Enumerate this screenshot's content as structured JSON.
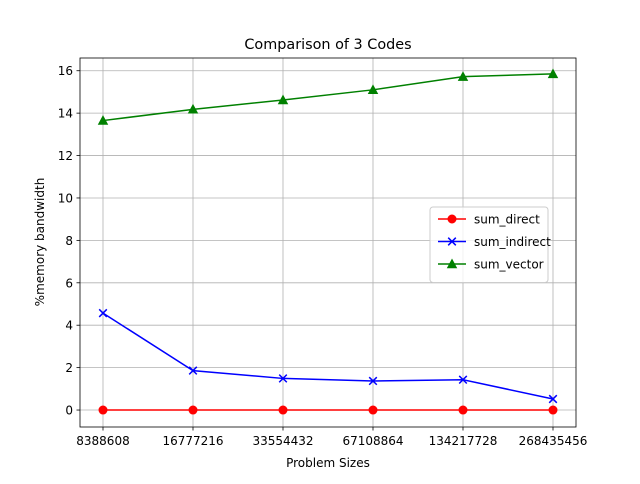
{
  "chart_data": {
    "type": "line",
    "title": "Comparison of 3 Codes",
    "xlabel": "Problem Sizes",
    "ylabel": "%memory bandwidth",
    "categories": [
      "8388608",
      "16777216",
      "33554432",
      "67108864",
      "134217728",
      "268435456"
    ],
    "ylim": [
      -0.8,
      16.6
    ],
    "yticks": [
      0,
      2,
      4,
      6,
      8,
      10,
      12,
      14,
      16
    ],
    "grid": true,
    "legend_position": "center-right",
    "series": [
      {
        "name": "sum_direct",
        "color": "#ff0000",
        "marker": "circle",
        "values": [
          0.0,
          0.0,
          0.0,
          0.0,
          0.0,
          0.0
        ]
      },
      {
        "name": "sum_indirect",
        "color": "#0000ff",
        "marker": "x",
        "values": [
          4.57,
          1.86,
          1.49,
          1.37,
          1.43,
          0.52
        ]
      },
      {
        "name": "sum_vector",
        "color": "#008000",
        "marker": "triangle",
        "values": [
          13.65,
          14.18,
          14.62,
          15.1,
          15.72,
          15.85
        ]
      }
    ]
  }
}
